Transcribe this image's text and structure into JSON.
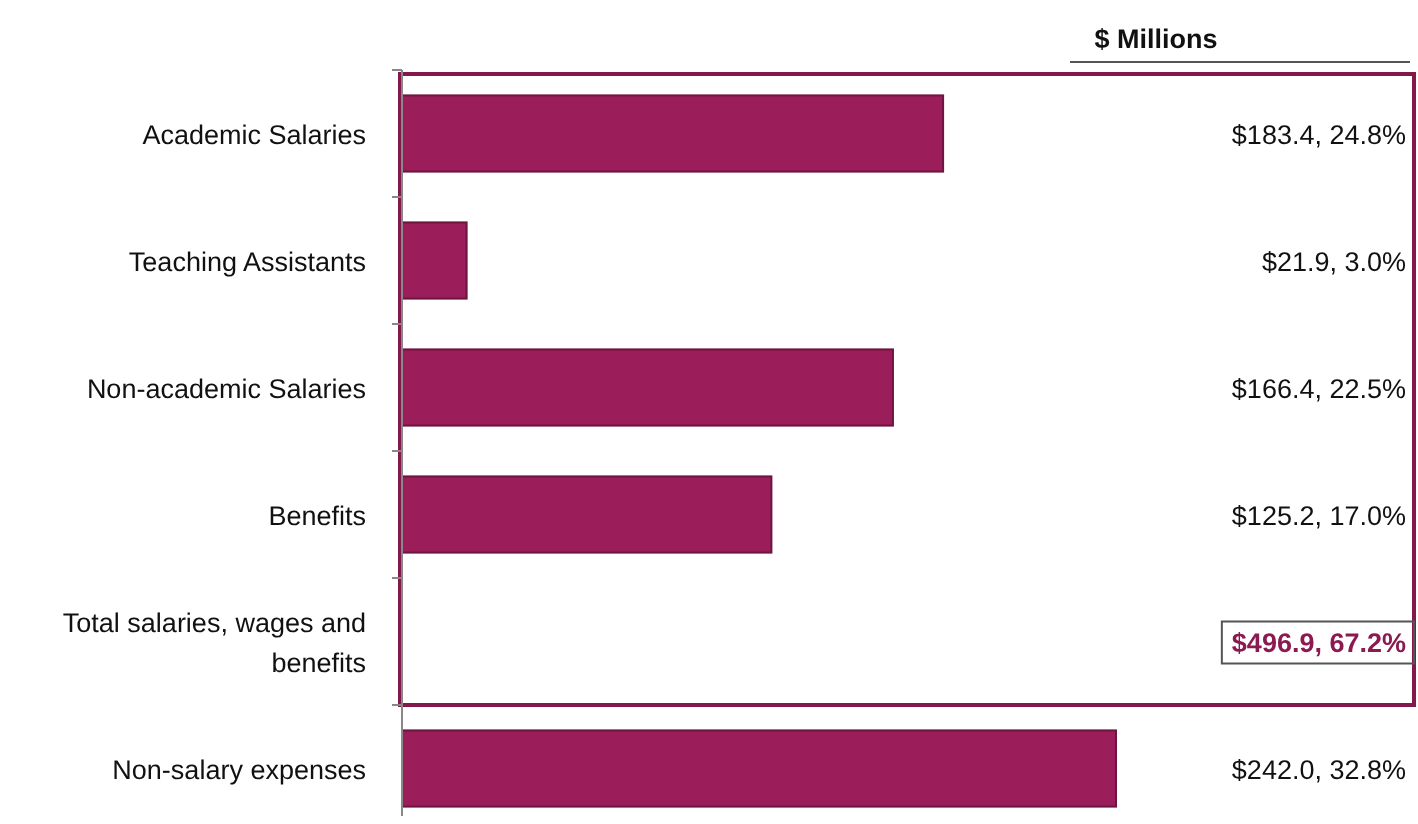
{
  "chart_data": {
    "type": "bar",
    "orientation": "horizontal",
    "title": "$ Millions",
    "categories": [
      "Academic Salaries",
      "Teaching Assistants",
      "Non-academic Salaries",
      "Benefits",
      "Total salaries, wages and benefits",
      "Non-salary expenses"
    ],
    "values": [
      183.4,
      21.9,
      166.4,
      125.2,
      null,
      242.0
    ],
    "value_labels": [
      "$183.4, 24.8%",
      "$21.9, 3.0%",
      "$166.4, 22.5%",
      "$125.2, 17.0%",
      "$496.9, 67.2%",
      "$242.0, 32.8%"
    ],
    "color": "#9b1d5a"
  }
}
